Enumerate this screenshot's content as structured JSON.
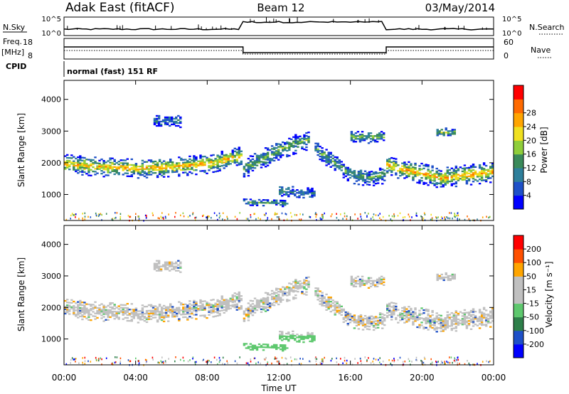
{
  "header": {
    "site": "Adak East (fitACF)",
    "beam": "Beam 12",
    "date": "03/May/2014"
  },
  "summary_panel": {
    "left_labels": {
      "nsky": "N.Sky",
      "freq": "Freq.",
      "freq_unit": "[MHz]",
      "cpid": "CPID"
    },
    "right_labels": {
      "nsearch": "N.Search",
      "nave": "Nave"
    },
    "noise_ticks_left": [
      "10^5",
      "10^0"
    ],
    "noise_ticks_right": [
      "10^5",
      "10^0"
    ],
    "freq_ticks": [
      "18",
      "8"
    ],
    "nave_ticks": [
      "60",
      "0"
    ],
    "cpid_text": "normal (fast) 151 RF"
  },
  "x_axis": {
    "label": "Time UT",
    "ticks": [
      "00:00",
      "04:00",
      "08:00",
      "12:00",
      "16:00",
      "20:00",
      "00:00"
    ]
  },
  "chart_data": [
    {
      "type": "heatmap",
      "name": "power",
      "xlabel": "Time UT",
      "ylabel": "Slant Range [km]",
      "xlim": [
        0,
        24
      ],
      "ylim": [
        180,
        4600
      ],
      "yticks": [
        "1000",
        "2000",
        "3000",
        "4000"
      ],
      "colorbar": {
        "label": "Power [dB]",
        "ticks": [
          "4",
          "8",
          "12",
          "16",
          "20",
          "24",
          "28"
        ],
        "colors": [
          "#0000ff",
          "#1e50c8",
          "#2e7f9b",
          "#3a8a5a",
          "#8fce3a",
          "#f0e020",
          "#ffa500",
          "#ff6a00",
          "#ff0000"
        ]
      },
      "echo_bands": [
        {
          "t": [
            0.0,
            2.0,
            4.0,
            6.0,
            8.0,
            9.9
          ],
          "center_km": [
            1950,
            1850,
            1800,
            1850,
            1950,
            2200
          ],
          "width_km": 300,
          "level": 0.7
        },
        {
          "t": [
            10.0,
            11.0,
            12.0,
            13.0,
            13.6
          ],
          "center_km": [
            1800,
            2100,
            2400,
            2600,
            2700
          ],
          "width_km": 300,
          "level": 0.45
        },
        {
          "t": [
            14.0,
            15.0,
            16.0,
            17.0,
            17.9
          ],
          "center_km": [
            2400,
            2000,
            1600,
            1500,
            1600
          ],
          "width_km": 260,
          "level": 0.4
        },
        {
          "t": [
            18.0,
            19.5,
            21.0,
            22.5,
            24.0
          ],
          "center_km": [
            1900,
            1700,
            1500,
            1600,
            1700
          ],
          "width_km": 320,
          "level": 0.72
        },
        {
          "t": [
            16.0,
            17.9
          ],
          "center_km": [
            2800,
            2800
          ],
          "width_km": 200,
          "level": 0.45
        },
        {
          "t": [
            20.8,
            21.8
          ],
          "center_km": [
            2950,
            2950
          ],
          "width_km": 150,
          "level": 0.5
        },
        {
          "t": [
            10.0,
            12.5
          ],
          "center_km": [
            750,
            700
          ],
          "width_km": 100,
          "level": 0.4
        },
        {
          "t": [
            12.0,
            14.0
          ],
          "center_km": [
            1100,
            1000
          ],
          "width_km": 200,
          "level": 0.3
        },
        {
          "t": [
            5.0,
            6.5
          ],
          "center_km": [
            3300,
            3300
          ],
          "width_km": 200,
          "level": 0.25
        }
      ]
    },
    {
      "type": "heatmap",
      "name": "velocity",
      "xlabel": "Time UT",
      "ylabel": "Slant Range [km]",
      "xlim": [
        0,
        24
      ],
      "ylim": [
        180,
        4600
      ],
      "yticks": [
        "1000",
        "2000",
        "3000",
        "4000"
      ],
      "colorbar": {
        "label": "Velocity [m s⁻¹]",
        "ticks": [
          "200",
          "100",
          "50",
          "15",
          "-15",
          "-50",
          "-100",
          "-200"
        ],
        "colors": [
          "#0000ff",
          "#1e50c8",
          "#2e7f4a",
          "#5ec86e",
          "#c0c0c0",
          "#c0c0c0",
          "#ffa500",
          "#ff5000",
          "#ff0000"
        ]
      }
    }
  ]
}
